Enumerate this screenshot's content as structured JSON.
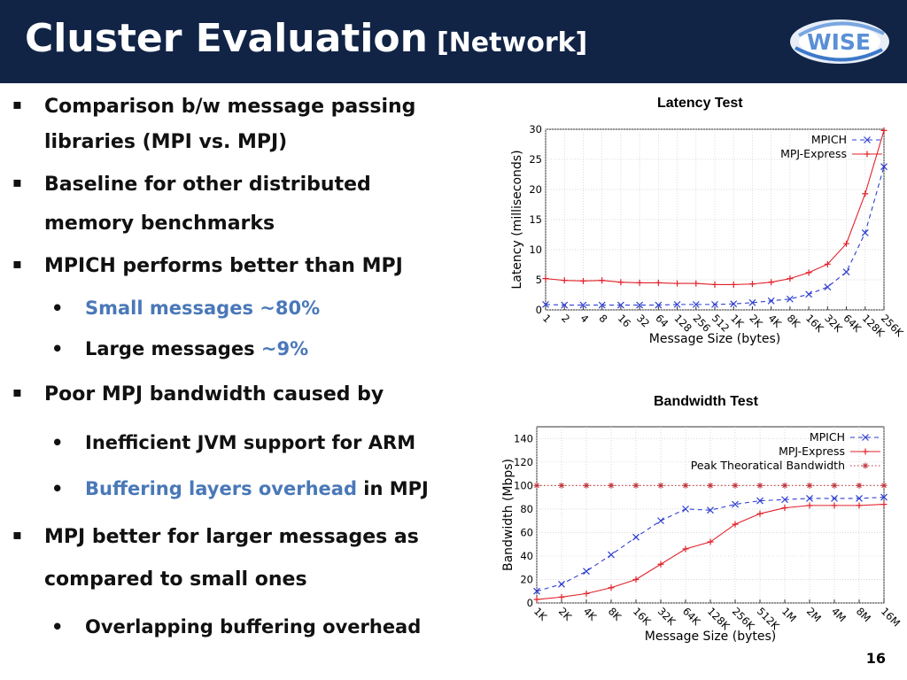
{
  "header": {
    "title": "Cluster Evaluation",
    "subtitle": "[Network]",
    "logo_text": "WISE"
  },
  "bullets": [
    {
      "level": 1,
      "parts": [
        {
          "text": "Comparison b/w message passing",
          "color": "normal"
        }
      ]
    },
    {
      "level": 1,
      "cont": true,
      "parts": [
        {
          "text": "libraries (MPI vs. MPJ)",
          "color": "normal"
        }
      ]
    },
    {
      "level": 1,
      "parts": [
        {
          "text": "Baseline for other distributed",
          "color": "normal"
        }
      ]
    },
    {
      "level": 1,
      "cont": true,
      "parts": [
        {
          "text": "memory benchmarks",
          "color": "normal"
        }
      ]
    },
    {
      "level": 1,
      "parts": [
        {
          "text": "MPICH performs better than MPJ",
          "color": "normal"
        }
      ]
    },
    {
      "level": 2,
      "parts": [
        {
          "text": "Small messages ~80%",
          "color": "blue"
        }
      ]
    },
    {
      "level": 2,
      "parts": [
        {
          "text": "Large messages ",
          "color": "normal"
        },
        {
          "text": "~9%",
          "color": "blue"
        }
      ]
    },
    {
      "level": 1,
      "parts": [
        {
          "text": "Poor MPJ bandwidth caused by",
          "color": "normal"
        }
      ]
    },
    {
      "level": 2,
      "parts": [
        {
          "text": "Inefficient JVM support for ARM",
          "color": "normal"
        }
      ]
    },
    {
      "level": 2,
      "parts": [
        {
          "text": "Buffering layers overhead",
          "color": "blue"
        },
        {
          "text": " in MPJ",
          "color": "normal"
        }
      ]
    },
    {
      "level": 1,
      "parts": [
        {
          "text": "MPJ better for larger messages as",
          "color": "normal"
        }
      ]
    },
    {
      "level": 1,
      "cont": true,
      "parts": [
        {
          "text": "compared to small ones",
          "color": "normal"
        }
      ]
    },
    {
      "level": 2,
      "parts": [
        {
          "text": "Overlapping buffering overhead",
          "color": "normal"
        }
      ]
    }
  ],
  "colors": {
    "header_bg": "#112446",
    "blue_text": "#4a78b8",
    "mpich": "#2f3fd0",
    "mpj": "#e0202a",
    "peak": "#c0353b"
  },
  "page_number": "16",
  "chart_data": [
    {
      "type": "line",
      "title": "Latency Test",
      "xlabel": "Message Size (bytes)",
      "ylabel": "Latency (milliseconds)",
      "categories": [
        "1",
        "2",
        "4",
        "8",
        "16",
        "32",
        "64",
        "128",
        "256",
        "512",
        "1K",
        "2K",
        "4K",
        "8K",
        "16K",
        "32K",
        "64K",
        "128K",
        "256K"
      ],
      "yticks": [
        0,
        5,
        10,
        15,
        20,
        25,
        30
      ],
      "ylim": [
        0,
        30
      ],
      "grid": true,
      "legend": "top-right",
      "series": [
        {
          "name": "MPICH",
          "style": "dashed",
          "marker": "x",
          "color": "#2f3fd0",
          "values": [
            0.9,
            0.8,
            0.8,
            0.8,
            0.8,
            0.8,
            0.8,
            0.9,
            0.9,
            0.9,
            1.0,
            1.2,
            1.5,
            1.8,
            2.6,
            3.8,
            6.3,
            12.8,
            23.8
          ]
        },
        {
          "name": "MPJ-Express",
          "style": "solid",
          "marker": "+",
          "color": "#e0202a",
          "values": [
            5.2,
            4.9,
            4.8,
            4.9,
            4.6,
            4.5,
            4.5,
            4.4,
            4.4,
            4.2,
            4.2,
            4.3,
            4.6,
            5.2,
            6.2,
            7.6,
            11.0,
            19.3,
            29.8
          ]
        }
      ]
    },
    {
      "type": "line",
      "title": "Bandwidth Test",
      "xlabel": "Message Size (bytes)",
      "ylabel": "Bandwidth (Mbps)",
      "categories": [
        "1K",
        "2K",
        "4K",
        "8K",
        "16K",
        "32K",
        "64K",
        "128K",
        "256K",
        "512K",
        "1M",
        "2M",
        "4M",
        "8M",
        "16M"
      ],
      "yticks": [
        0,
        20,
        40,
        60,
        80,
        100,
        120,
        140
      ],
      "ylim": [
        0,
        150
      ],
      "grid": true,
      "legend": "top-right",
      "series": [
        {
          "name": "MPICH",
          "style": "dashed",
          "marker": "x",
          "color": "#2f3fd0",
          "values": [
            10,
            16,
            27,
            41,
            56,
            70,
            80,
            79,
            84,
            87,
            88,
            89,
            89,
            89,
            90
          ]
        },
        {
          "name": "MPJ-Express",
          "style": "solid",
          "marker": "+",
          "color": "#e0202a",
          "values": [
            3,
            5,
            8,
            13,
            20,
            33,
            46,
            52,
            67,
            76,
            81,
            83,
            83,
            83,
            84
          ]
        },
        {
          "name": "Peak Theoratical Bandwidth",
          "style": "dotted",
          "marker": "*",
          "color": "#c0353b",
          "values": [
            100,
            100,
            100,
            100,
            100,
            100,
            100,
            100,
            100,
            100,
            100,
            100,
            100,
            100,
            100
          ]
        }
      ]
    }
  ]
}
